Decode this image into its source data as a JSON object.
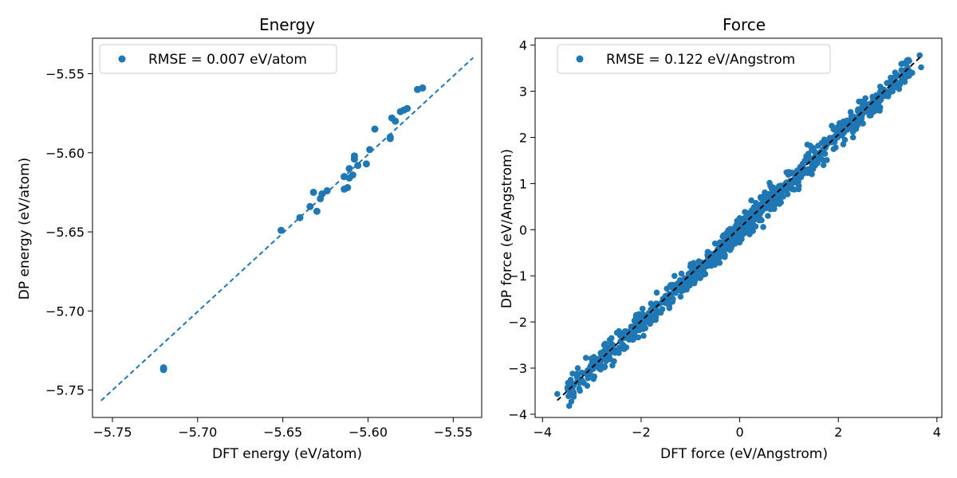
{
  "colors": {
    "marker": "#1f77b4",
    "identity_energy": "#1f77b4",
    "identity_force": "#000000",
    "axis": "#000000",
    "legend_border": "#cccccc"
  },
  "chart_data": [
    {
      "type": "scatter",
      "title": "Energy",
      "xlabel": "DFT energy (eV/atom)",
      "ylabel": "DP energy (eV/atom)",
      "xlim": [
        -5.7617,
        -5.5333
      ],
      "ylim": [
        -5.7673,
        -5.5276
      ],
      "xticks": [
        -5.75,
        -5.7,
        -5.65,
        -5.6,
        -5.55
      ],
      "yticks": [
        -5.75,
        -5.7,
        -5.65,
        -5.6,
        -5.55
      ],
      "xtick_labels": [
        "−5.75",
        "−5.70",
        "−5.65",
        "−5.60",
        "−5.55"
      ],
      "ytick_labels": [
        "−5.75",
        "−5.70",
        "−5.65",
        "−5.60",
        "−5.55"
      ],
      "legend": {
        "label": "RMSE = 0.007 eV/atom",
        "position": "upper-left"
      },
      "identity_line": {
        "style": "dashed",
        "from": [
          -5.7567,
          -5.7567
        ],
        "to": [
          -5.5383,
          -5.5399
        ]
      },
      "points": [
        [
          -5.72,
          -5.737
        ],
        [
          -5.72,
          -5.736
        ],
        [
          -5.651,
          -5.649
        ],
        [
          -5.64,
          -5.641
        ],
        [
          -5.634,
          -5.634
        ],
        [
          -5.632,
          -5.625
        ],
        [
          -5.63,
          -5.637
        ],
        [
          -5.628,
          -5.629
        ],
        [
          -5.627,
          -5.626
        ],
        [
          -5.624,
          -5.624
        ],
        [
          -5.614,
          -5.623
        ],
        [
          -5.614,
          -5.615
        ],
        [
          -5.612,
          -5.622
        ],
        [
          -5.611,
          -5.61
        ],
        [
          -5.611,
          -5.616
        ],
        [
          -5.609,
          -5.614
        ],
        [
          -5.608,
          -5.602
        ],
        [
          -5.608,
          -5.604
        ],
        [
          -5.606,
          -5.608
        ],
        [
          -5.601,
          -5.607
        ],
        [
          -5.599,
          -5.598
        ],
        [
          -5.596,
          -5.585
        ],
        [
          -5.587,
          -5.59
        ],
        [
          -5.587,
          -5.591
        ],
        [
          -5.586,
          -5.578
        ],
        [
          -5.584,
          -5.58
        ],
        [
          -5.581,
          -5.574
        ],
        [
          -5.579,
          -5.573
        ],
        [
          -5.577,
          -5.572
        ],
        [
          -5.571,
          -5.56
        ],
        [
          -5.568,
          -5.559
        ]
      ]
    },
    {
      "type": "scatter",
      "title": "Force",
      "xlabel": "DFT force (eV/Angstrom)",
      "ylabel": "DP force (eV/Angstrom)",
      "xlim": [
        -4.15,
        4.1
      ],
      "ylim": [
        -4.07,
        4.15
      ],
      "xticks": [
        -4,
        -2,
        0,
        2,
        4
      ],
      "yticks": [
        -4,
        -3,
        -2,
        -1,
        0,
        1,
        2,
        3,
        4
      ],
      "xtick_labels": [
        "−4",
        "−2",
        "0",
        "2",
        "4"
      ],
      "ytick_labels": [
        "−4",
        "−3",
        "−2",
        "−1",
        "0",
        "1",
        "2",
        "3",
        "4"
      ],
      "legend": {
        "label": "RMSE = 0.122 eV/Angstrom",
        "position": "upper-left"
      },
      "identity_line": {
        "style": "dashed",
        "from": [
          -3.7,
          -3.7
        ],
        "to": [
          3.7,
          3.78
        ]
      },
      "band": {
        "count": 900,
        "x_range": [
          -3.5,
          3.5
        ],
        "sigma": 0.13,
        "seed": 7
      },
      "points": [
        [
          -3.7,
          -3.56
        ],
        [
          -3.3,
          -3.2
        ],
        [
          -3.2,
          -3.1
        ],
        [
          -2.95,
          -3.18
        ],
        [
          -3.0,
          -2.9
        ],
        [
          -2.9,
          -2.8
        ],
        [
          -2.75,
          -2.5
        ],
        [
          -2.7,
          -2.6
        ],
        [
          -2.6,
          -2.35
        ],
        [
          -2.55,
          -2.85
        ],
        [
          -2.45,
          -2.2
        ],
        [
          -2.3,
          -2.55
        ],
        [
          -2.2,
          -2.1
        ],
        [
          -2.1,
          -1.85
        ],
        [
          -1.95,
          -2.3
        ],
        [
          -1.8,
          -1.6
        ],
        [
          -1.6,
          -1.8
        ],
        [
          -1.4,
          -1.2
        ],
        [
          -1.2,
          -1.45
        ],
        [
          -1.0,
          -0.8
        ],
        [
          -0.8,
          -1.05
        ],
        [
          -0.5,
          -0.3
        ],
        [
          -0.3,
          -0.55
        ],
        [
          0.0,
          0.25
        ],
        [
          0.2,
          -0.1
        ],
        [
          0.5,
          0.75
        ],
        [
          0.7,
          0.45
        ],
        [
          1.0,
          1.25
        ],
        [
          1.2,
          0.95
        ],
        [
          1.5,
          1.75
        ],
        [
          1.7,
          1.4
        ],
        [
          1.95,
          2.2
        ],
        [
          2.1,
          1.85
        ],
        [
          2.25,
          2.55
        ],
        [
          2.3,
          2.0
        ],
        [
          2.4,
          2.45
        ],
        [
          2.5,
          2.3
        ],
        [
          2.55,
          2.85
        ],
        [
          2.6,
          2.55
        ],
        [
          2.7,
          2.75
        ],
        [
          2.8,
          2.6
        ],
        [
          2.85,
          3.1
        ],
        [
          2.95,
          2.9
        ],
        [
          3.05,
          3.2
        ],
        [
          3.1,
          3.0
        ],
        [
          3.15,
          3.3
        ],
        [
          3.2,
          3.35
        ],
        [
          3.25,
          3.15
        ],
        [
          3.3,
          3.25
        ],
        [
          3.4,
          3.35
        ],
        [
          3.5,
          3.4
        ],
        [
          3.65,
          3.78
        ],
        [
          3.68,
          3.52
        ]
      ]
    }
  ]
}
